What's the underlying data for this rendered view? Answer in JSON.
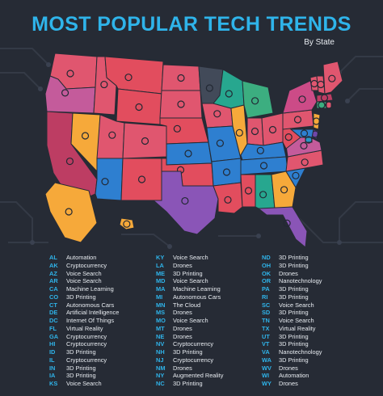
{
  "header": {
    "title": "MOST POPULAR TECH TRENDS",
    "subtitle": "By State"
  },
  "colors": {
    "background": "#262b35",
    "title": "#2fb4ea",
    "abbr": "#2fb4ea",
    "text": "#e8ecf1",
    "3D Printing": "#e0566f",
    "Voice Search": "#2e7fd0",
    "Drones": "#e24d5e",
    "Cryptocurrency": "#f6a93a",
    "Automation": "#27a78f",
    "Autonomous Cars": "#3cae80",
    "Machine Learning": "#bd3d63",
    "Virtual Reality": "#8a55b7",
    "Nanotechnology": "#c45b9b",
    "Artificial Intelligence": "#7047a8",
    "Internet Of Things": "#2996c6",
    "The Cloud": "#424a59",
    "Augmented Reality": "#cc4b87"
  },
  "legend": [
    [
      {
        "abbr": "AL",
        "trend": "Automation"
      },
      {
        "abbr": "AK",
        "trend": "Cryptocurrency"
      },
      {
        "abbr": "AZ",
        "trend": "Voice Search"
      },
      {
        "abbr": "AR",
        "trend": "Voice Search"
      },
      {
        "abbr": "CA",
        "trend": "Machine Learning"
      },
      {
        "abbr": "CO",
        "trend": "3D Printing"
      },
      {
        "abbr": "CT",
        "trend": "Autonomous Cars"
      },
      {
        "abbr": "DE",
        "trend": "Artificial Intelligence"
      },
      {
        "abbr": "DC",
        "trend": "Internet Of Things"
      },
      {
        "abbr": "FL",
        "trend": "Virtual Reality"
      },
      {
        "abbr": "GA",
        "trend": "Cryptocurrency"
      },
      {
        "abbr": "HI",
        "trend": "Cryptocurrency"
      },
      {
        "abbr": "ID",
        "trend": "3D Printing"
      },
      {
        "abbr": "IL",
        "trend": "Cryptocurrency"
      },
      {
        "abbr": "IN",
        "trend": "3D Printing"
      },
      {
        "abbr": "IA",
        "trend": "3D Printing"
      },
      {
        "abbr": "KS",
        "trend": "Voice Search"
      }
    ],
    [
      {
        "abbr": "KY",
        "trend": "Voice Search"
      },
      {
        "abbr": "LA",
        "trend": "Drones"
      },
      {
        "abbr": "ME",
        "trend": "3D Printing"
      },
      {
        "abbr": "MD",
        "trend": "Voice Search"
      },
      {
        "abbr": "MA",
        "trend": "Machine Learning"
      },
      {
        "abbr": "MI",
        "trend": "Autonomous Cars"
      },
      {
        "abbr": "MN",
        "trend": "The Cloud"
      },
      {
        "abbr": "MS",
        "trend": "Drones"
      },
      {
        "abbr": "MO",
        "trend": "Voice Search"
      },
      {
        "abbr": "MT",
        "trend": "Drones"
      },
      {
        "abbr": "NE",
        "trend": "Drones"
      },
      {
        "abbr": "NV",
        "trend": "Cryptocurrency"
      },
      {
        "abbr": "NH",
        "trend": "3D Printing"
      },
      {
        "abbr": "NJ",
        "trend": "Cryptocurrency"
      },
      {
        "abbr": "NM",
        "trend": "Drones"
      },
      {
        "abbr": "NY",
        "trend": "Augmented Reality"
      },
      {
        "abbr": "NC",
        "trend": "3D Printing"
      }
    ],
    [
      {
        "abbr": "ND",
        "trend": "3D Printing"
      },
      {
        "abbr": "OH",
        "trend": "3D Printing"
      },
      {
        "abbr": "OK",
        "trend": "Drones"
      },
      {
        "abbr": "OR",
        "trend": "Nanotechnology"
      },
      {
        "abbr": "PA",
        "trend": "3D Printing"
      },
      {
        "abbr": "RI",
        "trend": "3D Printing"
      },
      {
        "abbr": "SC",
        "trend": "Voice Search"
      },
      {
        "abbr": "SD",
        "trend": "3D Printing"
      },
      {
        "abbr": "TN",
        "trend": "Voice Search"
      },
      {
        "abbr": "TX",
        "trend": "Virtual Reality"
      },
      {
        "abbr": "UT",
        "trend": "3D Printing"
      },
      {
        "abbr": "VT",
        "trend": "3D Printing"
      },
      {
        "abbr": "VA",
        "trend": "Nanotechnology"
      },
      {
        "abbr": "WA",
        "trend": "3D Printing"
      },
      {
        "abbr": "WV",
        "trend": "Drones"
      },
      {
        "abbr": "WI",
        "trend": "Automation"
      },
      {
        "abbr": "WY",
        "trend": "Drones"
      }
    ]
  ],
  "map_states": [
    {
      "abbr": "WA",
      "trend": "3D Printing",
      "icon": "printer-icon"
    },
    {
      "abbr": "OR",
      "trend": "Nanotechnology",
      "icon": "molecule-icon"
    },
    {
      "abbr": "CA",
      "trend": "Machine Learning",
      "icon": "gear-icon"
    },
    {
      "abbr": "NV",
      "trend": "Cryptocurrency",
      "icon": "bitcoin-icon"
    },
    {
      "abbr": "ID",
      "trend": "3D Printing",
      "icon": "printer-icon"
    },
    {
      "abbr": "MT",
      "trend": "Drones",
      "icon": "drone-icon"
    },
    {
      "abbr": "WY",
      "trend": "Drones",
      "icon": "drone-icon"
    },
    {
      "abbr": "UT",
      "trend": "3D Printing",
      "icon": "cube-icon"
    },
    {
      "abbr": "AZ",
      "trend": "Voice Search",
      "icon": "microphone-icon"
    },
    {
      "abbr": "CO",
      "trend": "3D Printing",
      "icon": "cube-icon"
    },
    {
      "abbr": "NM",
      "trend": "Drones",
      "icon": "drone-icon"
    },
    {
      "abbr": "ND",
      "trend": "3D Printing",
      "icon": "cube-icon"
    },
    {
      "abbr": "SD",
      "trend": "3D Printing",
      "icon": "cube-icon"
    },
    {
      "abbr": "NE",
      "trend": "Drones",
      "icon": "drone-icon"
    },
    {
      "abbr": "KS",
      "trend": "Voice Search",
      "icon": "microphone-icon"
    },
    {
      "abbr": "OK",
      "trend": "Drones",
      "icon": "drone-icon"
    },
    {
      "abbr": "TX",
      "trend": "Virtual Reality",
      "icon": "vr-headset-icon"
    },
    {
      "abbr": "MN",
      "trend": "The Cloud",
      "icon": "cloud-icon"
    },
    {
      "abbr": "IA",
      "trend": "3D Printing",
      "icon": "cube-icon"
    },
    {
      "abbr": "MO",
      "trend": "Voice Search",
      "icon": "microphone-icon"
    },
    {
      "abbr": "AR",
      "trend": "Voice Search",
      "icon": "microphone-icon"
    },
    {
      "abbr": "LA",
      "trend": "Drones",
      "icon": "drone-icon"
    },
    {
      "abbr": "WI",
      "trend": "Automation",
      "icon": "robot-icon"
    },
    {
      "abbr": "IL",
      "trend": "Cryptocurrency",
      "icon": "bitcoin-icon"
    },
    {
      "abbr": "MI",
      "trend": "Autonomous Cars",
      "icon": "car-icon"
    },
    {
      "abbr": "IN",
      "trend": "3D Printing",
      "icon": "cube-icon"
    },
    {
      "abbr": "OH",
      "trend": "3D Printing",
      "icon": "cube-icon"
    },
    {
      "abbr": "KY",
      "trend": "Voice Search",
      "icon": "microphone-icon"
    },
    {
      "abbr": "TN",
      "trend": "Voice Search",
      "icon": "microphone-icon"
    },
    {
      "abbr": "MS",
      "trend": "Drones",
      "icon": "drone-icon"
    },
    {
      "abbr": "AL",
      "trend": "Automation",
      "icon": "robot-icon"
    },
    {
      "abbr": "GA",
      "trend": "Cryptocurrency",
      "icon": "bitcoin-icon"
    },
    {
      "abbr": "FL",
      "trend": "Virtual Reality",
      "icon": "vr-headset-icon"
    },
    {
      "abbr": "SC",
      "trend": "Voice Search",
      "icon": "microphone-icon"
    },
    {
      "abbr": "NC",
      "trend": "3D Printing",
      "icon": "cube-icon"
    },
    {
      "abbr": "VA",
      "trend": "Nanotechnology",
      "icon": "molecule-icon"
    },
    {
      "abbr": "WV",
      "trend": "Drones",
      "icon": "drone-icon"
    },
    {
      "abbr": "PA",
      "trend": "3D Printing",
      "icon": "cube-icon"
    },
    {
      "abbr": "NY",
      "trend": "Augmented Reality",
      "icon": "ar-glasses-icon"
    },
    {
      "abbr": "VT",
      "trend": "3D Printing",
      "icon": "cube-icon"
    },
    {
      "abbr": "NH",
      "trend": "3D Printing",
      "icon": "cube-icon"
    },
    {
      "abbr": "ME",
      "trend": "3D Printing",
      "icon": "cube-icon"
    },
    {
      "abbr": "MA",
      "trend": "Machine Learning",
      "icon": "gear-icon"
    },
    {
      "abbr": "CT",
      "trend": "Autonomous Cars",
      "icon": "car-icon"
    },
    {
      "abbr": "RI",
      "trend": "3D Printing",
      "icon": "cube-icon"
    },
    {
      "abbr": "NJ",
      "trend": "Cryptocurrency",
      "icon": "bitcoin-icon"
    },
    {
      "abbr": "DE",
      "trend": "Artificial Intelligence",
      "icon": "brain-icon"
    },
    {
      "abbr": "MD",
      "trend": "Voice Search",
      "icon": "microphone-icon"
    },
    {
      "abbr": "DC",
      "trend": "Internet Of Things",
      "icon": "wifi-icon"
    },
    {
      "abbr": "AK",
      "trend": "Cryptocurrency",
      "icon": "bitcoin-icon"
    },
    {
      "abbr": "HI",
      "trend": "Cryptocurrency",
      "icon": "bitcoin-icon"
    }
  ]
}
